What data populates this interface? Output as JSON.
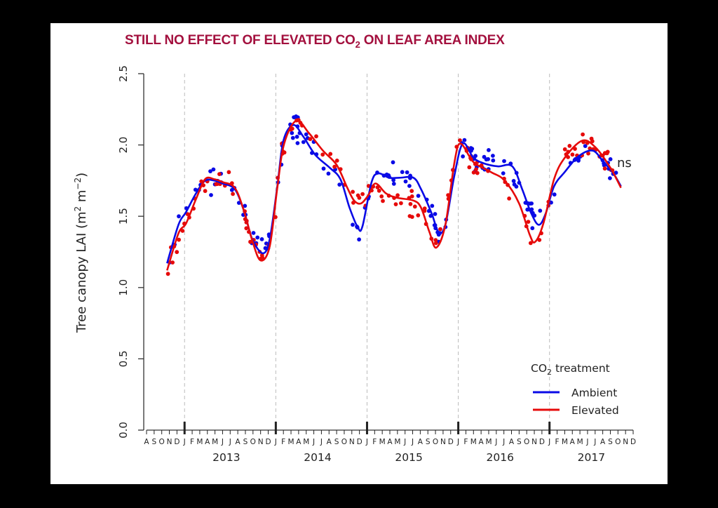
{
  "chart_data": {
    "type": "scatter",
    "title": "STILL NO EFFECT OF ELEVATED CO",
    "title_subscript": "2",
    "title_suffix": " ON LEAF AREA INDEX",
    "ylabel": "Tree canopy LAI  (m",
    "ylabel_sup1": "2",
    "ylabel_mid": " m",
    "ylabel_sup2": "−2",
    "ylabel_end": ")",
    "ylim": [
      0,
      2.5
    ],
    "yticks": [
      "0.0",
      "0.5",
      "1.0",
      "1.5",
      "2.0",
      "2.5"
    ],
    "ytick_values": [
      0,
      0.5,
      1.0,
      1.5,
      2.0,
      2.5
    ],
    "x_unit": "months since Aug 2012",
    "xlim": [
      0,
      64
    ],
    "month_labels": [
      "A",
      "S",
      "O",
      "N",
      "D",
      "J",
      "F",
      "M",
      "A",
      "M",
      "J",
      "J",
      "A",
      "S",
      "O",
      "N",
      "D",
      "J",
      "F",
      "M",
      "A",
      "M",
      "J",
      "J",
      "A",
      "S",
      "O",
      "N",
      "D",
      "J",
      "F",
      "M",
      "A",
      "M",
      "J",
      "J",
      "A",
      "S",
      "O",
      "N",
      "D",
      "J",
      "F",
      "M",
      "A",
      "M",
      "J",
      "J",
      "A",
      "S",
      "O",
      "N",
      "D",
      "J",
      "F",
      "M",
      "A",
      "M",
      "J",
      "J",
      "A",
      "S",
      "O",
      "N",
      "D"
    ],
    "year_ticks": [
      5,
      17,
      29,
      41,
      53
    ],
    "years": [
      {
        "label": "2013",
        "center": 10.5
      },
      {
        "label": "2014",
        "center": 22.5
      },
      {
        "label": "2015",
        "center": 34.5
      },
      {
        "label": "2016",
        "center": 46.5
      },
      {
        "label": "2017",
        "center": 58.5
      }
    ],
    "grid": false,
    "year_dividers": "dashed vertical lines at each January",
    "annotation": "ns",
    "legend": {
      "title": "CO",
      "title_subscript": "2",
      "title_suffix": " treatment",
      "position": "bottom-right",
      "entries": [
        "Ambient",
        "Elevated"
      ]
    },
    "series": [
      {
        "name": "Ambient",
        "color": "#0a0ae6",
        "x": [
          2.7,
          4.2,
          5.2,
          6.5,
          7.7,
          8.9,
          10.0,
          11.6,
          12.8,
          13.9,
          15.3,
          16.2,
          17.2,
          18.0,
          19.3,
          20.6,
          22.2,
          24.1,
          25.5,
          26.7,
          27.8,
          28.4,
          29.6,
          30.5,
          31.9,
          33.3,
          35.1,
          36.1,
          37.5,
          38.4,
          39.3,
          40.5,
          41.6,
          43.0,
          44.4,
          46.2,
          48.1,
          49.4,
          50.6,
          51.6,
          52.5,
          53.6,
          55.0,
          56.8,
          58.7,
          60.1,
          61.4,
          62.4
        ],
        "y": [
          1.17,
          1.44,
          1.53,
          1.66,
          1.75,
          1.75,
          1.73,
          1.69,
          1.54,
          1.34,
          1.24,
          1.34,
          1.71,
          2.03,
          2.14,
          2.06,
          1.93,
          1.84,
          1.76,
          1.56,
          1.42,
          1.43,
          1.74,
          1.8,
          1.77,
          1.77,
          1.77,
          1.69,
          1.52,
          1.39,
          1.44,
          1.79,
          2.01,
          1.91,
          1.87,
          1.85,
          1.85,
          1.69,
          1.52,
          1.44,
          1.52,
          1.71,
          1.81,
          1.92,
          1.96,
          1.88,
          1.8,
          1.71
        ]
      },
      {
        "name": "Elevated",
        "color": "#e60a0a",
        "x": [
          2.7,
          4.2,
          5.2,
          6.5,
          7.7,
          8.9,
          10.0,
          11.6,
          12.8,
          13.9,
          15.0,
          16.2,
          17.2,
          18.1,
          19.7,
          21.4,
          23.2,
          25.0,
          26.4,
          27.3,
          28.2,
          29.2,
          30.1,
          31.5,
          32.9,
          35.1,
          36.1,
          37.2,
          38.1,
          39.3,
          40.5,
          41.3,
          43.0,
          45.3,
          47.1,
          49.0,
          50.4,
          51.1,
          52.2,
          53.6,
          55.0,
          57.3,
          59.1,
          61.0,
          62.4
        ],
        "y": [
          1.12,
          1.38,
          1.45,
          1.62,
          1.76,
          1.76,
          1.74,
          1.7,
          1.54,
          1.33,
          1.19,
          1.29,
          1.7,
          2.01,
          2.17,
          2.08,
          1.96,
          1.86,
          1.7,
          1.61,
          1.59,
          1.65,
          1.73,
          1.66,
          1.63,
          1.61,
          1.56,
          1.39,
          1.28,
          1.44,
          1.88,
          2.01,
          1.88,
          1.81,
          1.75,
          1.59,
          1.37,
          1.32,
          1.45,
          1.76,
          1.91,
          2.03,
          1.98,
          1.84,
          1.7
        ]
      }
    ]
  }
}
